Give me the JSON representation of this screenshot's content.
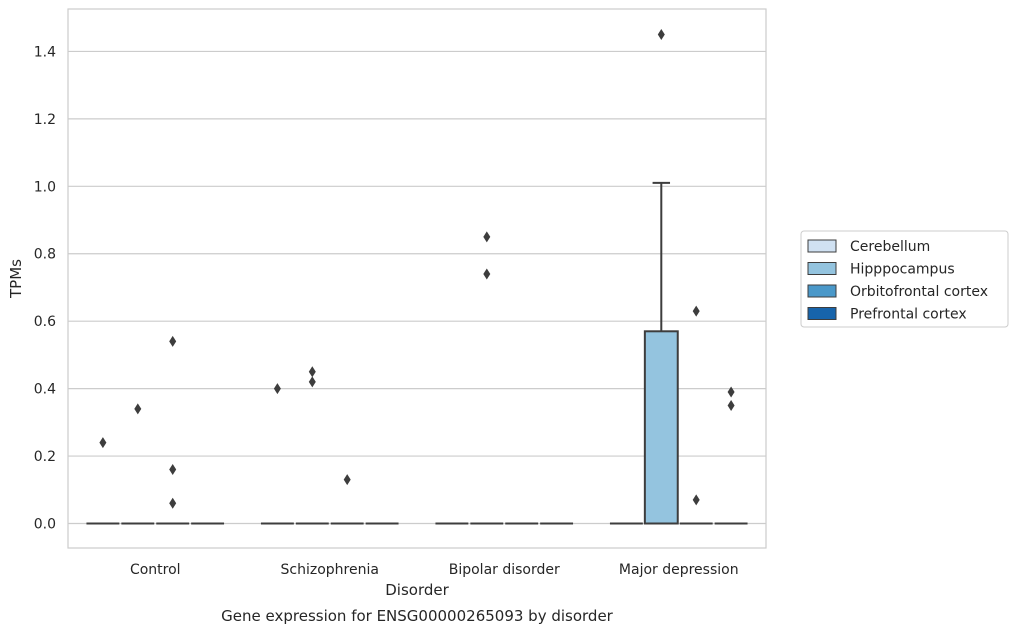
{
  "caption": "Gene expression for ENSG00000265093 by disorder",
  "chart_data": {
    "type": "box",
    "xlabel": "Disorder",
    "ylabel": "TPMs",
    "categories": [
      "Control",
      "Schizophrenia",
      "Bipolar disorder",
      "Major depression"
    ],
    "ylim": [
      -0.07,
      1.52
    ],
    "yticks": [
      0.0,
      0.2,
      0.4,
      0.6,
      0.8,
      1.0,
      1.2,
      1.4
    ],
    "ytick_labels": [
      "0.0",
      "0.2",
      "0.4",
      "0.6",
      "0.8",
      "1.0",
      "1.2",
      "1.4"
    ],
    "grid": "horizontal",
    "legend_position": "right",
    "series": [
      {
        "name": "Cerebellum",
        "color": "#d0e1f2",
        "boxes": [
          {
            "category": "Control",
            "q1": 0,
            "median": 0,
            "q3": 0,
            "whisker_low": 0,
            "whisker_high": 0,
            "outliers": [
              0.24
            ]
          },
          {
            "category": "Schizophrenia",
            "q1": 0,
            "median": 0,
            "q3": 0,
            "whisker_low": 0,
            "whisker_high": 0,
            "outliers": [
              0.4
            ]
          },
          {
            "category": "Bipolar disorder",
            "q1": 0,
            "median": 0,
            "q3": 0,
            "whisker_low": 0,
            "whisker_high": 0,
            "outliers": []
          },
          {
            "category": "Major depression",
            "q1": 0,
            "median": 0,
            "q3": 0,
            "whisker_low": 0,
            "whisker_high": 0,
            "outliers": []
          }
        ]
      },
      {
        "name": "Hipppocampus",
        "color": "#94c4df",
        "boxes": [
          {
            "category": "Control",
            "q1": 0,
            "median": 0,
            "q3": 0,
            "whisker_low": 0,
            "whisker_high": 0,
            "outliers": [
              0.34
            ]
          },
          {
            "category": "Schizophrenia",
            "q1": 0,
            "median": 0,
            "q3": 0,
            "whisker_low": 0,
            "whisker_high": 0,
            "outliers": [
              0.45,
              0.42
            ]
          },
          {
            "category": "Bipolar disorder",
            "q1": 0,
            "median": 0,
            "q3": 0,
            "whisker_low": 0,
            "whisker_high": 0,
            "outliers": [
              0.85,
              0.74
            ]
          },
          {
            "category": "Major depression",
            "q1": 0,
            "median": 0,
            "q3": 0.57,
            "whisker_low": 0,
            "whisker_high": 1.01,
            "outliers": [
              1.45
            ]
          }
        ]
      },
      {
        "name": "Orbitofrontal cortex",
        "color": "#4a98c9",
        "boxes": [
          {
            "category": "Control",
            "q1": 0,
            "median": 0,
            "q3": 0,
            "whisker_low": 0,
            "whisker_high": 0,
            "outliers": [
              0.54,
              0.16,
              0.06
            ]
          },
          {
            "category": "Schizophrenia",
            "q1": 0,
            "median": 0,
            "q3": 0,
            "whisker_low": 0,
            "whisker_high": 0,
            "outliers": [
              0.13
            ]
          },
          {
            "category": "Bipolar disorder",
            "q1": 0,
            "median": 0,
            "q3": 0,
            "whisker_low": 0,
            "whisker_high": 0,
            "outliers": []
          },
          {
            "category": "Major depression",
            "q1": 0,
            "median": 0,
            "q3": 0,
            "whisker_low": 0,
            "whisker_high": 0,
            "outliers": [
              0.63,
              0.07
            ]
          }
        ]
      },
      {
        "name": "Prefrontal cortex",
        "color": "#1764ab",
        "boxes": [
          {
            "category": "Control",
            "q1": 0,
            "median": 0,
            "q3": 0,
            "whisker_low": 0,
            "whisker_high": 0,
            "outliers": []
          },
          {
            "category": "Schizophrenia",
            "q1": 0,
            "median": 0,
            "q3": 0,
            "whisker_low": 0,
            "whisker_high": 0,
            "outliers": []
          },
          {
            "category": "Bipolar disorder",
            "q1": 0,
            "median": 0,
            "q3": 0,
            "whisker_low": 0,
            "whisker_high": 0,
            "outliers": []
          },
          {
            "category": "Major depression",
            "q1": 0,
            "median": 0,
            "q3": 0,
            "whisker_low": 0,
            "whisker_high": 0,
            "outliers": [
              0.39,
              0.35
            ]
          }
        ]
      }
    ]
  }
}
